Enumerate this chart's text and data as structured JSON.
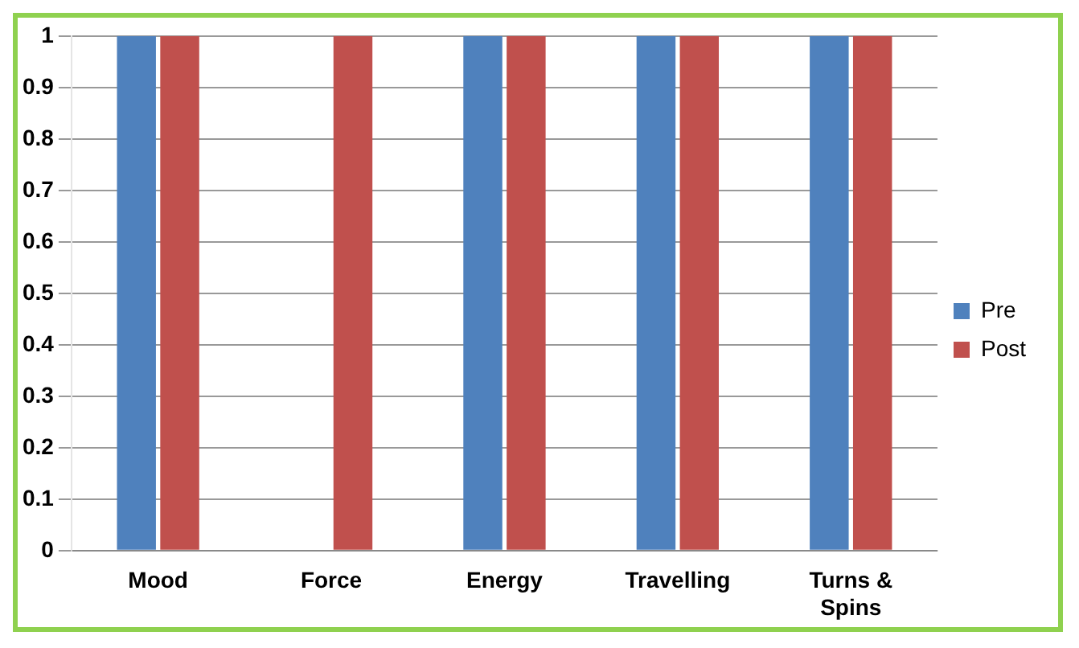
{
  "chart_data": {
    "type": "bar",
    "categories": [
      "Mood",
      "Force",
      "Energy",
      "Travelling",
      "Turns & Spins"
    ],
    "series": [
      {
        "name": "Pre",
        "color": "#4f81bd",
        "values": [
          1,
          0,
          1,
          1,
          1
        ]
      },
      {
        "name": "Post",
        "color": "#c0504d",
        "values": [
          1,
          1,
          1,
          1,
          1
        ]
      }
    ],
    "ylim": [
      0,
      1
    ],
    "yticks": [
      0,
      0.1,
      0.2,
      0.3,
      0.4,
      0.5,
      0.6,
      0.7,
      0.8,
      0.9,
      1
    ],
    "grid": "y",
    "legend": "right"
  }
}
